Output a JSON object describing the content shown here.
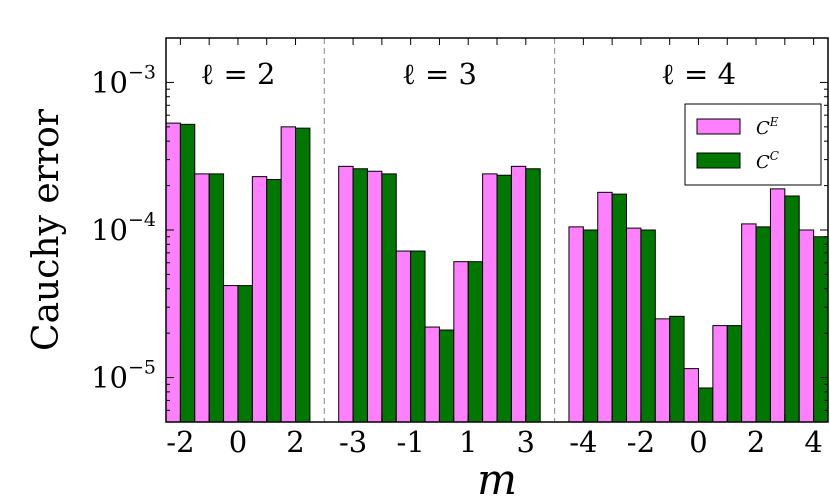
{
  "chart_data": {
    "type": "bar",
    "xlabel": "m",
    "ylabel": "Cauchy error",
    "yscale": "log",
    "ylim": [
      5e-06,
      0.002
    ],
    "yticks": [
      {
        "value": 0.001,
        "base": "10",
        "exp": "−3"
      },
      {
        "value": 0.0001,
        "base": "10",
        "exp": "−4"
      },
      {
        "value": 1e-05,
        "base": "10",
        "exp": "−5"
      }
    ],
    "groups": [
      {
        "label": "ℓ = 2",
        "m": [
          -2,
          -1,
          0,
          1,
          2
        ],
        "tick_labels": [
          "-2",
          "",
          "0",
          "",
          "2"
        ]
      },
      {
        "label": "ℓ = 3",
        "m": [
          -3,
          -2,
          -1,
          0,
          1,
          2,
          3
        ],
        "tick_labels": [
          "-3",
          "",
          "-1",
          "",
          "1",
          "",
          "3"
        ]
      },
      {
        "label": "ℓ = 4",
        "m": [
          -4,
          -3,
          -2,
          -1,
          0,
          1,
          2,
          3,
          4
        ],
        "tick_labels": [
          "-4",
          "",
          "-2",
          "",
          "0",
          "",
          "2",
          "",
          "4"
        ]
      }
    ],
    "series": [
      {
        "name": "C^E",
        "name_base": "C",
        "name_sup": "E",
        "color": "#ff80ff",
        "values": [
          [
            0.00053,
            0.00024,
            4.2e-05,
            0.00023,
            0.0005
          ],
          [
            0.00027,
            0.00025,
            7.2e-05,
            2.2e-05,
            6.1e-05,
            0.00024,
            0.00027
          ],
          [
            0.000105,
            0.00018,
            0.000103,
            2.5e-05,
            1.15e-05,
            2.25e-05,
            0.00011,
            0.00019,
            0.0001
          ]
        ]
      },
      {
        "name": "C^C",
        "name_base": "C",
        "name_sup": "C",
        "color": "#007700",
        "values": [
          [
            0.00052,
            0.00024,
            4.2e-05,
            0.00022,
            0.00049
          ],
          [
            0.00026,
            0.00024,
            7.2e-05,
            2.1e-05,
            6.1e-05,
            0.000235,
            0.00026
          ],
          [
            0.0001,
            0.000175,
            0.0001,
            2.6e-05,
            8.5e-06,
            2.25e-05,
            0.000105,
            0.00017,
            9e-05
          ]
        ]
      }
    ],
    "legend_position": "top-right",
    "separators": "dashed",
    "grid": false
  }
}
